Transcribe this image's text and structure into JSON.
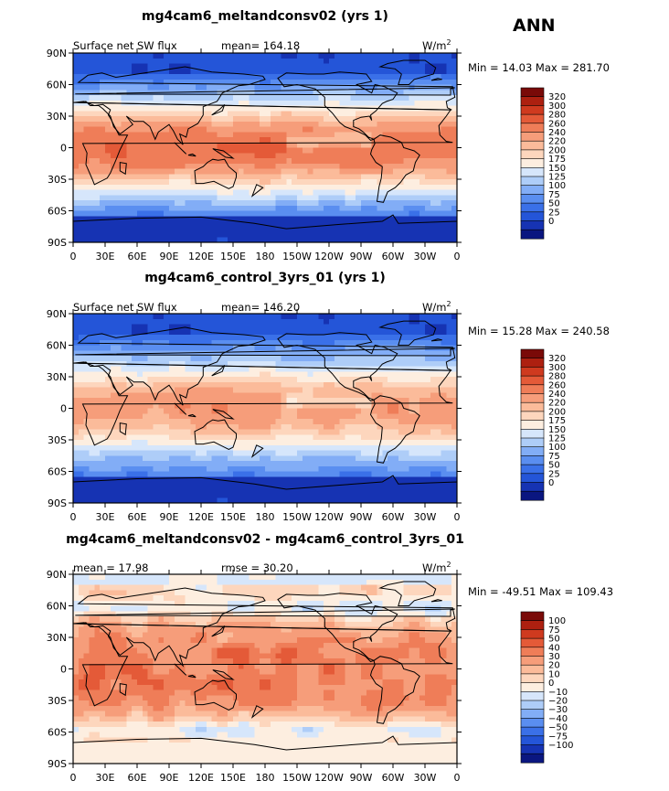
{
  "season": "ANN",
  "colors": {
    "abs_fills": [
      "#0a1680",
      "#1633b3",
      "#2455d8",
      "#3a70e8",
      "#5a8ef0",
      "#82adf6",
      "#aecdf8",
      "#d6e6fb",
      "#fdeee0",
      "#fdd6bd",
      "#fbbb9a",
      "#f69d7a",
      "#ef7d58",
      "#e45a38",
      "#cf3a1f",
      "#ad2010",
      "#7a0a08"
    ],
    "diff_fills": [
      "#0a1680",
      "#1633b3",
      "#2455d8",
      "#3a70e8",
      "#5a8ef0",
      "#82adf6",
      "#aecdf8",
      "#d6e6fb",
      "#fdeee0",
      "#fdd6bd",
      "#fbbb9a",
      "#f69d7a",
      "#ef7d58",
      "#e45a38",
      "#cf3a1f",
      "#ad2010",
      "#7a0a08"
    ]
  },
  "chart_data": [
    {
      "type": "heatmap",
      "title": "mg4cam6_meltandconsv02 (yrs 1)",
      "left_label": "Surface net SW flux",
      "mean_label": "mean= 164.18",
      "units": "W/m",
      "units_sup": "2",
      "min_max": "Min =  14.03 Max = 281.70",
      "levels": [
        "320",
        "300",
        "280",
        "260",
        "240",
        "220",
        "200",
        "175",
        "150",
        "125",
        "100",
        "75",
        "50",
        "25",
        "0"
      ],
      "x_ticks": [
        "0",
        "30E",
        "60E",
        "90E",
        "120E",
        "150E",
        "180",
        "150W",
        "120W",
        "90W",
        "60W",
        "30W",
        "0"
      ],
      "y_ticks": [
        "90N",
        "60N",
        "30N",
        "0",
        "30S",
        "60S",
        "90S"
      ],
      "xlim": [
        0,
        360
      ],
      "ylim": [
        -90,
        90
      ]
    },
    {
      "type": "heatmap",
      "title": "mg4cam6_control_3yrs_01 (yrs 1)",
      "left_label": "Surface net SW flux",
      "mean_label": "mean= 146.20",
      "units": "W/m",
      "units_sup": "2",
      "min_max": "Min =  15.28 Max = 240.58",
      "levels": [
        "320",
        "300",
        "280",
        "260",
        "240",
        "220",
        "200",
        "175",
        "150",
        "125",
        "100",
        "75",
        "50",
        "25",
        "0"
      ],
      "x_ticks": [
        "0",
        "30E",
        "60E",
        "90E",
        "120E",
        "150E",
        "180",
        "150W",
        "120W",
        "90W",
        "60W",
        "30W",
        "0"
      ],
      "y_ticks": [
        "90N",
        "60N",
        "30N",
        "0",
        "30S",
        "60S",
        "90S"
      ],
      "xlim": [
        0,
        360
      ],
      "ylim": [
        -90,
        90
      ]
    },
    {
      "type": "heatmap",
      "title": "mg4cam6_meltandconsv02 - mg4cam6_control_3yrs_01",
      "left_label": "mean =  17.98",
      "mean_label": "rmse =  30.20",
      "units": "W/m",
      "units_sup": "2",
      "min_max": "Min = -49.51 Max = 109.43",
      "levels": [
        "100",
        "75",
        "50",
        "40",
        "30",
        "20",
        "10",
        "0",
        "−10",
        "−20",
        "−30",
        "−40",
        "−50",
        "−75",
        "−100"
      ],
      "x_ticks": [
        "0",
        "30E",
        "60E",
        "90E",
        "120E",
        "150E",
        "180",
        "150W",
        "120W",
        "90W",
        "60W",
        "30W",
        "0"
      ],
      "y_ticks": [
        "90N",
        "60N",
        "30N",
        "0",
        "30S",
        "60S",
        "90S"
      ],
      "xlim": [
        0,
        360
      ],
      "ylim": [
        -90,
        90
      ]
    }
  ]
}
